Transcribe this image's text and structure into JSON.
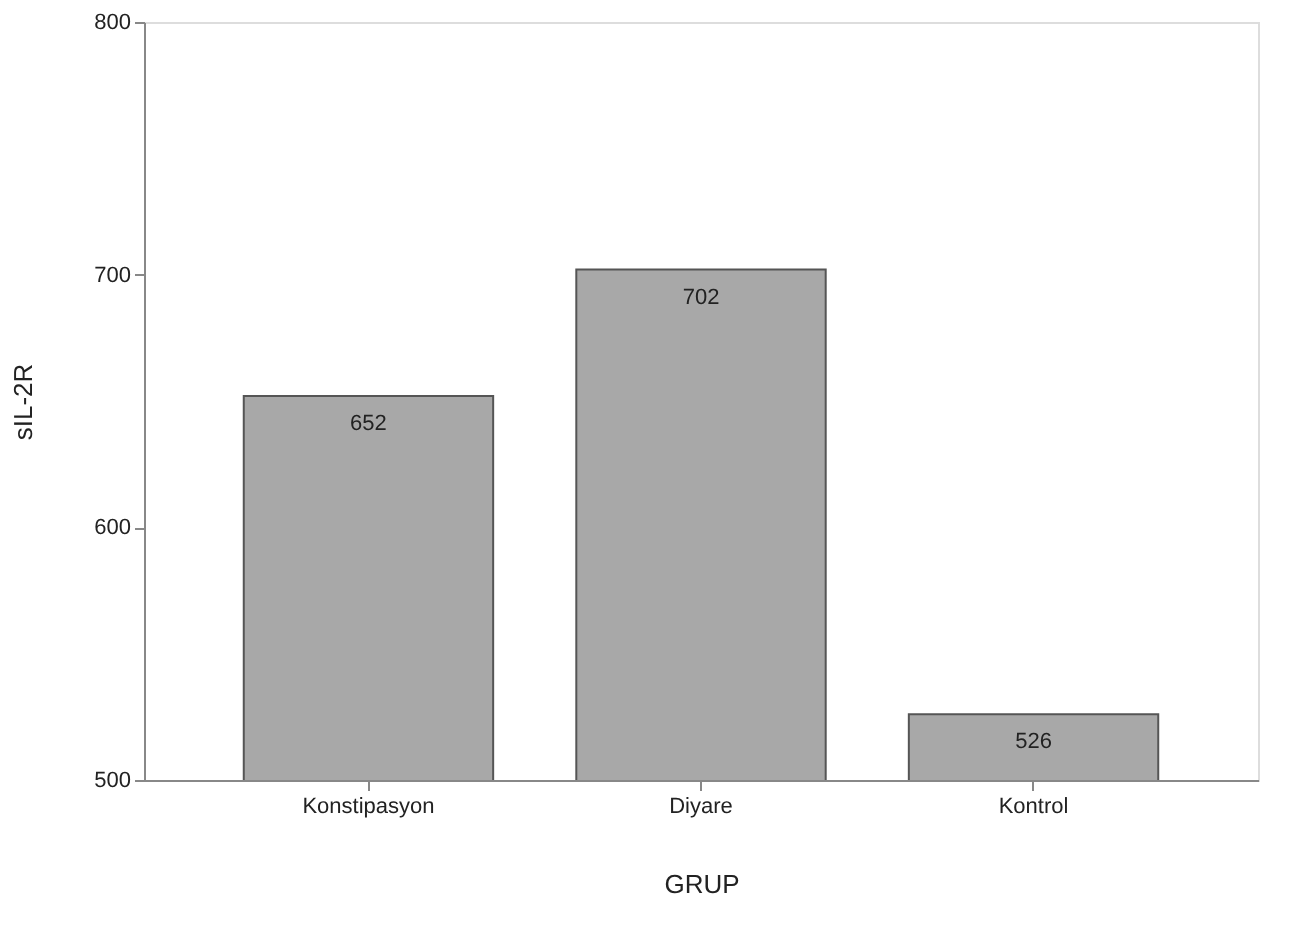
{
  "chart_data": {
    "type": "bar",
    "xlabel": "GRUP",
    "ylabel": "sIL-2R",
    "categories": [
      "Konstipasyon",
      "Diyare",
      "Kontrol"
    ],
    "values": [
      652,
      702,
      526
    ],
    "color": "#a8a8a8",
    "ylim": [
      500,
      800
    ],
    "yticks": [
      500,
      600,
      700,
      800
    ],
    "grid": false,
    "data_labels": true
  }
}
